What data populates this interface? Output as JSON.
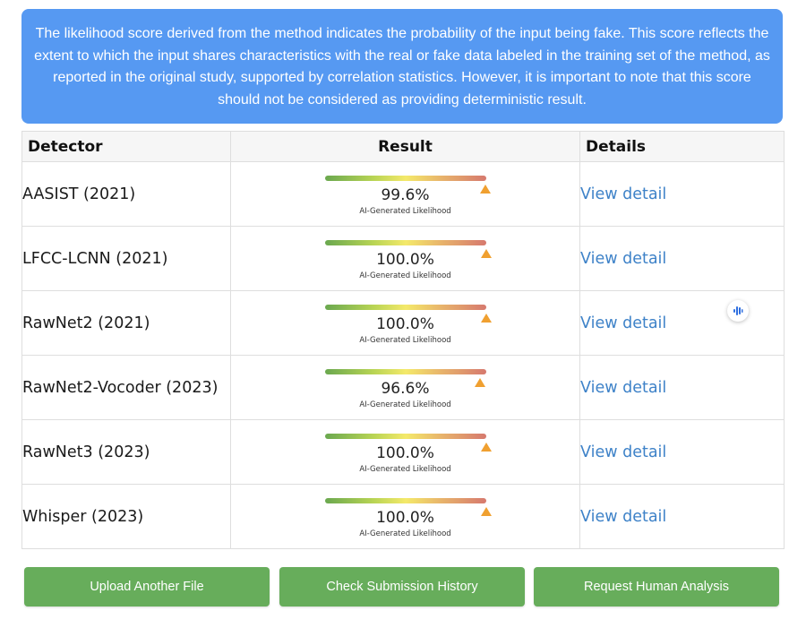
{
  "notice": {
    "text": "The likelihood score derived from the method indicates the probability of the input being fake. This score reflects the extent to which the input shares characteristics with the real or fake data labeled in the training set of the method, as reported in the original study, supported by correlation statistics. However, it is important to note that this score should not be considered as providing deterministic result."
  },
  "table": {
    "headers": {
      "detector": "Detector",
      "result": "Result",
      "details": "Details"
    },
    "caption": "AI-Generated Likelihood",
    "link_label": "View detail",
    "rows": [
      {
        "detector": "AASIST (2021)",
        "score": "99.6%",
        "level": 0.996
      },
      {
        "detector": "LFCC-LCNN (2021)",
        "score": "100.0%",
        "level": 1.0
      },
      {
        "detector": "RawNet2 (2021)",
        "score": "100.0%",
        "level": 1.0
      },
      {
        "detector": "RawNet2-Vocoder (2023)",
        "score": "96.6%",
        "level": 0.966
      },
      {
        "detector": "RawNet3 (2023)",
        "score": "100.0%",
        "level": 1.0
      },
      {
        "detector": "Whisper (2023)",
        "score": "100.0%",
        "level": 1.0
      }
    ]
  },
  "buttons": {
    "upload": "Upload Another File",
    "history": "Check Submission History",
    "human": "Request Human Analysis"
  },
  "colors": {
    "notice_bg": "#5699f2",
    "button_bg": "#67ad5b",
    "link": "#3e82c8",
    "marker": "#f0a030"
  },
  "icons": {
    "floating": "audio-waveform-icon"
  }
}
